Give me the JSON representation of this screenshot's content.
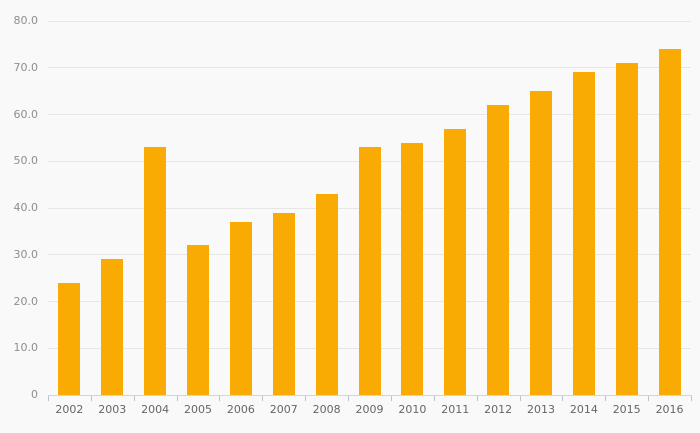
{
  "chart": {
    "background_color": "#f9f9f9",
    "bar_color": "#f9ab04",
    "grid_color": "#e6e6e6",
    "axis_line_color": "#ccd6e4",
    "tick_color": "#b6c3d6",
    "y_label_color": "#8e8e8e",
    "x_label_color": "#666666"
  },
  "chart_data": {
    "type": "bar",
    "categories": [
      "2002",
      "2003",
      "2004",
      "2005",
      "2006",
      "2007",
      "2008",
      "2009",
      "2010",
      "2011",
      "2012",
      "2013",
      "2014",
      "2015",
      "2016"
    ],
    "values": [
      24,
      29,
      53,
      32,
      37,
      39,
      43,
      53,
      54,
      57,
      62,
      65,
      69,
      71,
      74
    ],
    "ylim": [
      0,
      80
    ],
    "ytick_interval": 10,
    "ytick_labels": [
      "0",
      "10.0",
      "20.0",
      "30.0",
      "40.0",
      "50.0",
      "60.0",
      "70.0",
      "80.0"
    ],
    "grid": true,
    "legend": false,
    "x_axis_ticks": "category-boundaries"
  }
}
